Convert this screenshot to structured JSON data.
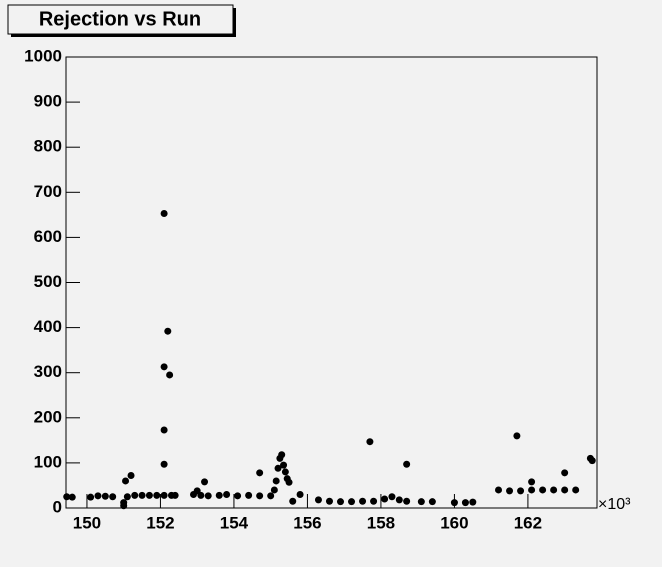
{
  "chart_data": {
    "type": "scatter",
    "title": "Rejection vs Run",
    "x_multiplier": "×10³",
    "x": [
      149.45,
      149.6,
      150.1,
      150.3,
      150.5,
      150.7,
      151.0,
      151.0,
      151.05,
      151.1,
      151.2,
      151.3,
      151.5,
      151.7,
      151.9,
      152.1,
      152.1,
      152.1,
      152.1,
      152.2,
      152.25,
      152.1,
      152.3,
      152.4,
      152.9,
      153.0,
      153.2,
      153.1,
      153.3,
      153.6,
      153.8,
      154.1,
      154.4,
      154.7,
      154.7,
      155.0,
      155.1,
      155.15,
      155.2,
      155.25,
      155.3,
      155.35,
      155.4,
      155.45,
      155.5,
      155.6,
      155.8,
      156.3,
      156.6,
      156.9,
      157.2,
      157.5,
      157.7,
      157.8,
      158.1,
      158.3,
      158.5,
      158.7,
      158.7,
      159.1,
      159.4,
      160.0,
      160.3,
      160.5,
      161.2,
      161.5,
      161.7,
      161.8,
      162.1,
      162.1,
      162.4,
      162.7,
      163.0,
      163.0,
      163.3,
      163.7,
      163.75
    ],
    "values": [
      25,
      24,
      24,
      27,
      26,
      25,
      5,
      12,
      60,
      25,
      72,
      28,
      28,
      28,
      28,
      653,
      313,
      173,
      97,
      392,
      295,
      28,
      28,
      28,
      30,
      38,
      58,
      28,
      27,
      28,
      30,
      27,
      28,
      78,
      27,
      27,
      40,
      60,
      88,
      110,
      118,
      95,
      80,
      65,
      57,
      15,
      30,
      18,
      15,
      14,
      14,
      15,
      147,
      15,
      20,
      25,
      18,
      97,
      15,
      14,
      14,
      12,
      12,
      13,
      40,
      38,
      160,
      38,
      40,
      58,
      40,
      40,
      78,
      40,
      40,
      110,
      105
    ],
    "color": "#000000",
    "xlim": [
      149.43,
      163.88
    ],
    "xticks": [
      150,
      152,
      154,
      156,
      158,
      160,
      162
    ],
    "ylim": [
      0,
      1000
    ],
    "yticks": [
      0,
      100,
      200,
      300,
      400,
      500,
      600,
      700,
      800,
      900,
      1000
    ]
  }
}
